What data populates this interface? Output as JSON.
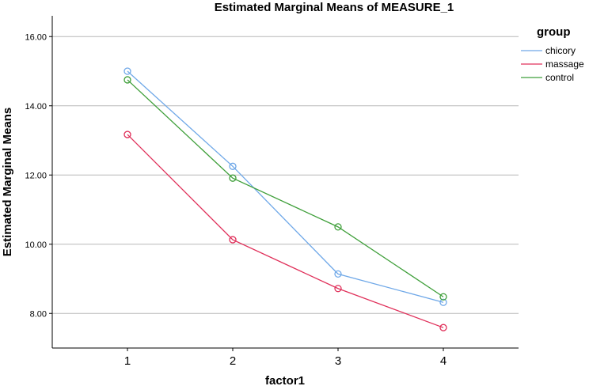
{
  "chart_data": {
    "type": "line",
    "title": "Estimated Marginal Means of MEASURE_1",
    "xlabel": "factor1",
    "ylabel": "Estimated Marginal Means",
    "categories": [
      "1",
      "2",
      "3",
      "4"
    ],
    "ylim": [
      7,
      16.6
    ],
    "yticks": [
      "8.00",
      "10.00",
      "12.00",
      "14.00",
      "16.00"
    ],
    "grid": "horizontal",
    "legend_title": "group",
    "legend_position": "top-right",
    "series": [
      {
        "name": "chicory",
        "color": "#6fa8e8",
        "values": [
          15.0,
          12.25,
          9.14,
          8.32
        ]
      },
      {
        "name": "massage",
        "color": "#e0305a",
        "values": [
          13.17,
          10.13,
          8.72,
          7.59
        ]
      },
      {
        "name": "control",
        "color": "#3f9f3a",
        "values": [
          14.75,
          11.91,
          10.5,
          8.48
        ]
      }
    ]
  }
}
